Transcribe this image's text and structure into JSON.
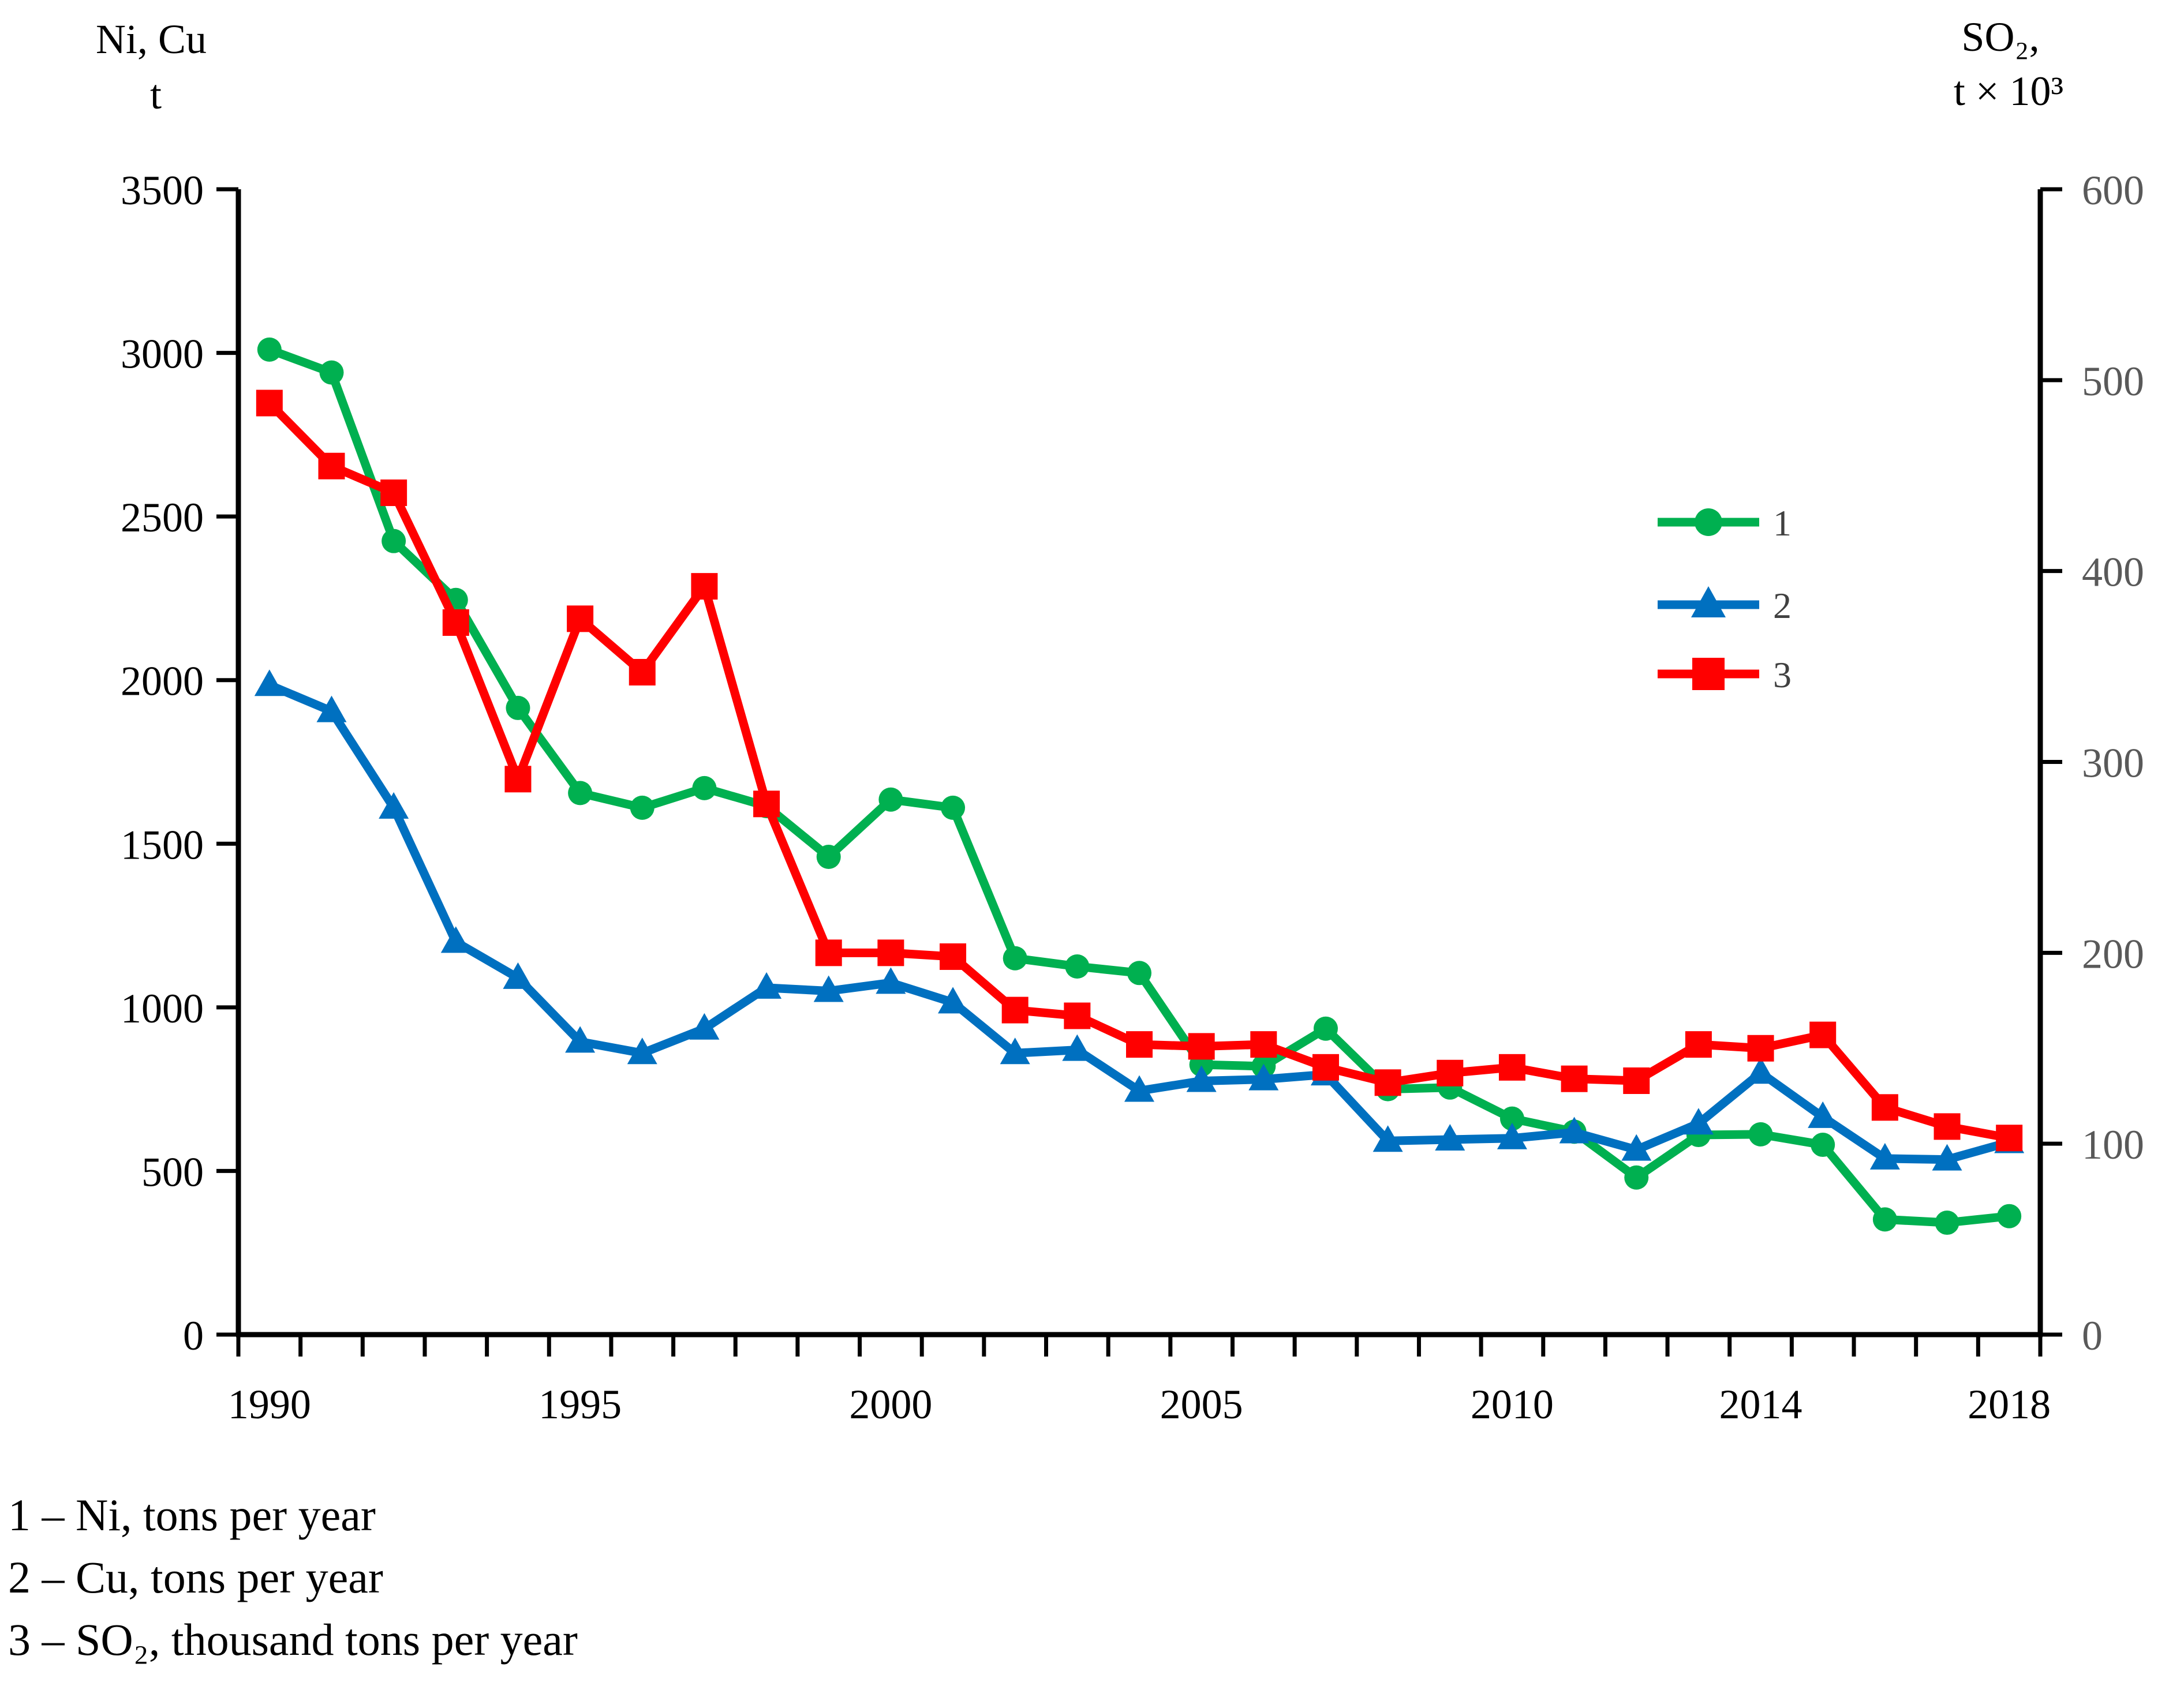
{
  "figure": {
    "background": "#ffffff",
    "axis_color": "#000000",
    "right_label_color": "#595959",
    "titles": {
      "left_line1": "Ni, Cu",
      "left_line2": "t",
      "right_line1": "SO₂,",
      "right_line2": "t × 10³"
    },
    "captions": [
      "1 – Ni, tons per year",
      "2 – Cu, tons per year",
      "3 – SO₂, thousand tons per year"
    ]
  },
  "chart_data": {
    "type": "line",
    "title": "",
    "xlabel": "",
    "ylabel_left": "Ni, Cu, t",
    "ylabel_right": "SO2, t × 10^3",
    "x": [
      1990,
      1991,
      1992,
      1993,
      1994,
      1995,
      1996,
      1997,
      1998,
      1999,
      2000,
      2001,
      2002,
      2003,
      2004,
      2005,
      2006,
      2007,
      2008,
      2009,
      2010,
      2011,
      2012,
      2013,
      2014,
      2015,
      2016,
      2017,
      2018
    ],
    "x_tick_labels": [
      {
        "index": 0,
        "label": "1990"
      },
      {
        "index": 5,
        "label": "1995"
      },
      {
        "index": 10,
        "label": "2000"
      },
      {
        "index": 15,
        "label": "2005"
      },
      {
        "index": 20,
        "label": "2010"
      },
      {
        "index": 24,
        "label": "2014"
      },
      {
        "index": 28,
        "label": "2018"
      }
    ],
    "axes": {
      "left": {
        "min": 0,
        "max": 3500,
        "step": 500,
        "labels": [
          "0",
          "500",
          "1000",
          "1500",
          "2000",
          "2500",
          "3000",
          "3500"
        ]
      },
      "right": {
        "min": 0,
        "max": 600,
        "step": 100,
        "labels": [
          "0",
          "100",
          "200",
          "300",
          "400",
          "500",
          "600"
        ]
      }
    },
    "grid": false,
    "legend_position": "inside-right-upper",
    "series": [
      {
        "name": "1",
        "legend": "Ni, tons per year",
        "axis": "left",
        "color": "#00B050",
        "marker": "circle",
        "values": [
          3010,
          2940,
          2425,
          2245,
          1915,
          1655,
          1610,
          1670,
          1615,
          1460,
          1635,
          1610,
          1150,
          1125,
          1105,
          825,
          820,
          935,
          750,
          755,
          660,
          620,
          480,
          610,
          612,
          580,
          352,
          342,
          362
        ]
      },
      {
        "name": "2",
        "legend": "Cu, tons per year",
        "axis": "left",
        "color": "#0070C0",
        "marker": "triangle",
        "values": [
          1985,
          1905,
          1610,
          1200,
          1090,
          895,
          860,
          935,
          1060,
          1050,
          1075,
          1015,
          860,
          870,
          745,
          775,
          780,
          795,
          592,
          596,
          600,
          618,
          565,
          645,
          800,
          665,
          538,
          535,
          588
        ]
      },
      {
        "name": "3",
        "legend": "SO2, thousand tons per year",
        "axis": "right",
        "color": "#FF0000",
        "marker": "square",
        "values": [
          488,
          455,
          441,
          373,
          291,
          375,
          347,
          392,
          278,
          200,
          200,
          198,
          170,
          167,
          152,
          151,
          152,
          140,
          132,
          137,
          140,
          134,
          133,
          152,
          150,
          157,
          119,
          109,
          103
        ]
      }
    ]
  }
}
